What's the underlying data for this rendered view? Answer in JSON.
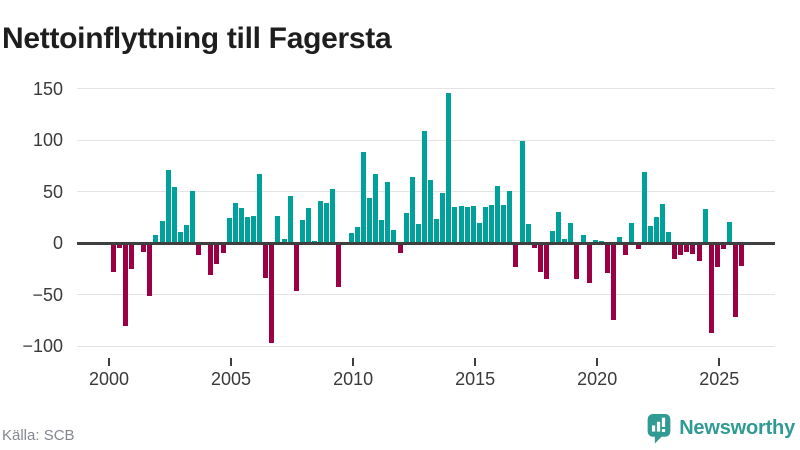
{
  "title": "Nettoinflyttning till Fagersta",
  "source": "Källa: SCB",
  "branding": {
    "logo_text": "Newsworthy"
  },
  "colors": {
    "positive": "#00a19b",
    "negative": "#9b0045",
    "grid": "#e3e3e3",
    "zero_line": "#3f3f3f",
    "axis_text": "#3a3a3a",
    "title_text": "#1e1e1e",
    "source_text": "#84888e",
    "brand": "#319a93"
  },
  "chart_data": {
    "type": "bar",
    "title": "Nettoinflyttning till Fagersta",
    "xlabel": "",
    "ylabel": "",
    "frequency": "quarterly",
    "start_period": "2000-Q1",
    "end_period": "2025-Q4",
    "ylim": [
      -110,
      160
    ],
    "grid": "horizontal",
    "y_ticks": [
      {
        "value": 150,
        "label": "150"
      },
      {
        "value": 100,
        "label": "100"
      },
      {
        "value": 50,
        "label": "50"
      },
      {
        "value": 0,
        "label": "0"
      },
      {
        "value": -50,
        "label": "−50"
      },
      {
        "value": -100,
        "label": "−100"
      }
    ],
    "x_tick_labels": [
      "2000",
      "2005",
      "2010",
      "2015",
      "2020",
      "2025"
    ],
    "values": [
      -28,
      -5,
      -80,
      -25,
      0,
      -8,
      -51,
      8,
      22,
      71,
      55,
      11,
      18,
      51,
      -11,
      0,
      -31,
      -20,
      -9,
      25,
      39,
      34,
      26,
      27,
      67,
      -34,
      -97,
      27,
      4,
      46,
      -46,
      23,
      34,
      2,
      41,
      39,
      53,
      -42,
      0,
      10,
      16,
      89,
      44,
      67,
      23,
      60,
      13,
      -9,
      29,
      64,
      19,
      109,
      62,
      24,
      49,
      146,
      35,
      36,
      35,
      36,
      20,
      35,
      37,
      56,
      37,
      51,
      -23,
      99,
      19,
      -5,
      -28,
      -35,
      12,
      30,
      4,
      20,
      -35,
      8,
      -39,
      3,
      2,
      -29,
      -75,
      6,
      -11,
      20,
      -6,
      69,
      17,
      26,
      38,
      11,
      -15,
      -11,
      -8,
      -10,
      -17,
      33,
      -87,
      -23,
      -6,
      21,
      -72,
      -22
    ]
  }
}
